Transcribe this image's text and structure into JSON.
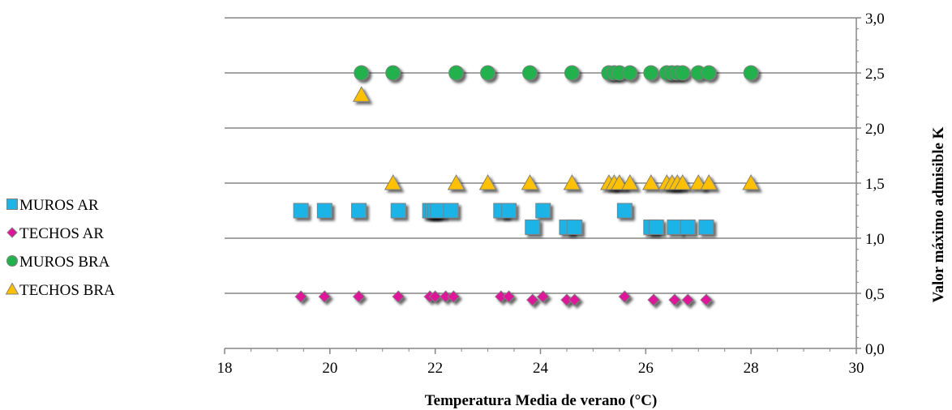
{
  "chart_data": {
    "type": "scatter",
    "title": "",
    "xlabel": "Temperatura Media de verano (°C)",
    "ylabel": "Valor máximo admisible K",
    "xlim": [
      18,
      30
    ],
    "ylim": [
      0,
      3
    ],
    "x_ticks": [
      "18",
      "20",
      "22",
      "24",
      "26",
      "28",
      "30"
    ],
    "y_ticks": [
      "0,0",
      "0,5",
      "1,0",
      "1,5",
      "2,0",
      "2,5",
      "3,0"
    ],
    "y_axis_side": "right",
    "grid": "horizontal",
    "legend_position": "left",
    "series": [
      {
        "name": "MUROS AR",
        "marker": "square",
        "color": "#1eb4e6",
        "points": [
          [
            19.45,
            1.25
          ],
          [
            19.9,
            1.25
          ],
          [
            20.55,
            1.25
          ],
          [
            21.3,
            1.25
          ],
          [
            21.9,
            1.25
          ],
          [
            21.95,
            1.25
          ],
          [
            22.0,
            1.25
          ],
          [
            22.05,
            1.25
          ],
          [
            22.3,
            1.25
          ],
          [
            23.25,
            1.25
          ],
          [
            23.4,
            1.25
          ],
          [
            24.05,
            1.25
          ],
          [
            25.6,
            1.25
          ],
          [
            23.85,
            1.1
          ],
          [
            24.5,
            1.1
          ],
          [
            24.65,
            1.1
          ],
          [
            26.1,
            1.1
          ],
          [
            26.2,
            1.1
          ],
          [
            26.55,
            1.1
          ],
          [
            26.8,
            1.1
          ],
          [
            27.15,
            1.1
          ]
        ]
      },
      {
        "name": "TECHOS AR",
        "marker": "diamond",
        "color": "#e0129a",
        "points": [
          [
            19.45,
            0.47
          ],
          [
            19.9,
            0.47
          ],
          [
            20.55,
            0.47
          ],
          [
            21.3,
            0.47
          ],
          [
            21.9,
            0.47
          ],
          [
            22.0,
            0.47
          ],
          [
            22.2,
            0.47
          ],
          [
            22.35,
            0.47
          ],
          [
            23.25,
            0.47
          ],
          [
            23.4,
            0.47
          ],
          [
            24.05,
            0.47
          ],
          [
            25.6,
            0.47
          ],
          [
            23.85,
            0.44
          ],
          [
            24.5,
            0.44
          ],
          [
            24.65,
            0.44
          ],
          [
            26.15,
            0.44
          ],
          [
            26.55,
            0.44
          ],
          [
            26.8,
            0.44
          ],
          [
            27.15,
            0.44
          ]
        ]
      },
      {
        "name": "MUROS BRA",
        "marker": "circle",
        "color": "#23b14d",
        "points": [
          [
            20.6,
            2.5
          ],
          [
            21.2,
            2.5
          ],
          [
            22.4,
            2.5
          ],
          [
            23.0,
            2.5
          ],
          [
            23.8,
            2.5
          ],
          [
            24.6,
            2.5
          ],
          [
            25.3,
            2.5
          ],
          [
            25.4,
            2.5
          ],
          [
            25.5,
            2.5
          ],
          [
            25.7,
            2.5
          ],
          [
            26.1,
            2.5
          ],
          [
            26.4,
            2.5
          ],
          [
            26.5,
            2.5
          ],
          [
            26.6,
            2.5
          ],
          [
            26.7,
            2.5
          ],
          [
            27.0,
            2.5
          ],
          [
            27.2,
            2.5
          ],
          [
            28.0,
            2.5
          ]
        ]
      },
      {
        "name": "TECHOS BRA",
        "marker": "triangle",
        "color": "#ffc000",
        "points": [
          [
            20.6,
            2.3
          ],
          [
            21.2,
            1.5
          ],
          [
            22.4,
            1.5
          ],
          [
            23.0,
            1.5
          ],
          [
            23.8,
            1.5
          ],
          [
            24.6,
            1.5
          ],
          [
            25.3,
            1.5
          ],
          [
            25.4,
            1.5
          ],
          [
            25.5,
            1.5
          ],
          [
            25.7,
            1.5
          ],
          [
            26.1,
            1.5
          ],
          [
            26.4,
            1.5
          ],
          [
            26.5,
            1.5
          ],
          [
            26.6,
            1.5
          ],
          [
            26.7,
            1.5
          ],
          [
            27.0,
            1.5
          ],
          [
            27.2,
            1.5
          ],
          [
            28.0,
            1.5
          ]
        ]
      }
    ]
  }
}
